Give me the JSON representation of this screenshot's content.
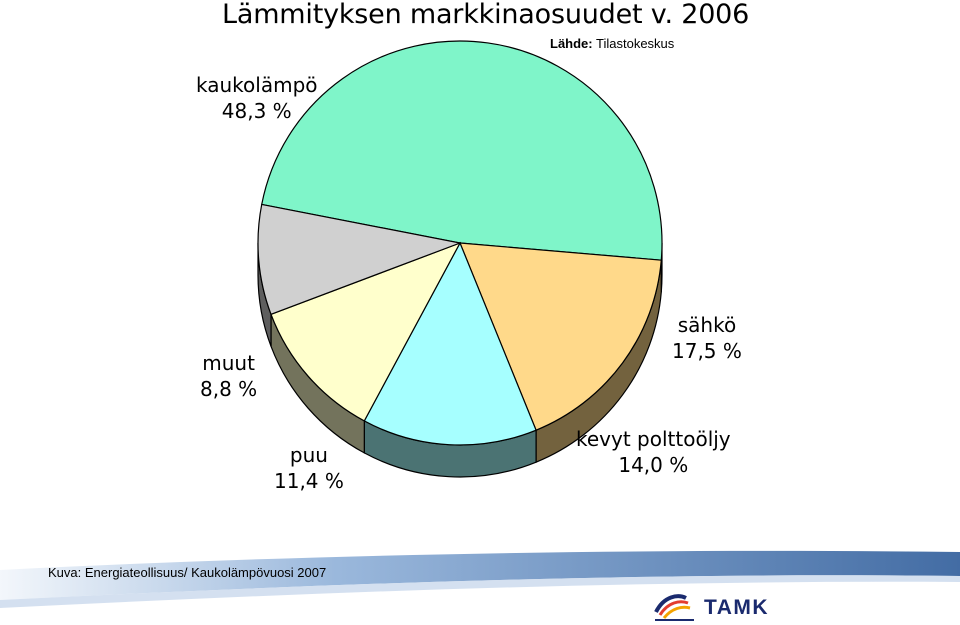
{
  "title": "Lämmityksen markkinaosuudet v. 2006",
  "source": {
    "label": "Lähde:",
    "value": "Tilastokeskus"
  },
  "caption": "Kuva: Energiateollisuus/ Kaukolämpövuosi 2007",
  "logo": {
    "text": "TAMK",
    "icon": "tamk-logo-icon"
  },
  "colors": {
    "kaukolampo": "#7FF5C9",
    "sahko": "#FFD98A",
    "kevyt_polttooljy": "#A6FFFF",
    "puu": "#FFFFCC",
    "muut": "#D0D0D0",
    "band": "#2E5C9A"
  },
  "chart_data": {
    "type": "pie",
    "title": "Lämmityksen markkinaosuudet v. 2006",
    "unit": "%",
    "slices": [
      {
        "name": "kaukolämpö",
        "value": 48.3,
        "label": "48,3 %"
      },
      {
        "name": "sähkö",
        "value": 17.5,
        "label": "17,5 %"
      },
      {
        "name": "kevyt polttoöljy",
        "value": 14.0,
        "label": "14,0 %"
      },
      {
        "name": "puu",
        "value": 11.4,
        "label": "11,4 %"
      },
      {
        "name": "muut",
        "value": 8.8,
        "label": "8,8 %"
      }
    ]
  }
}
